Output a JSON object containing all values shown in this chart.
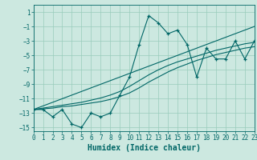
{
  "title": "",
  "xlabel": "Humidex (Indice chaleur)",
  "ylabel": "",
  "bg_color": "#cce8e0",
  "grid_color": "#99ccbb",
  "line_color": "#006666",
  "x_data": [
    0,
    1,
    2,
    3,
    4,
    5,
    6,
    7,
    8,
    9,
    10,
    11,
    12,
    13,
    14,
    15,
    16,
    17,
    18,
    19,
    20,
    21,
    22,
    23
  ],
  "y_main": [
    -12.5,
    -12.5,
    -13.5,
    -12.5,
    -14.5,
    -15.0,
    -13.0,
    -13.5,
    -13.0,
    -10.5,
    -8.0,
    -3.5,
    0.5,
    -0.5,
    -2.0,
    -1.5,
    -3.5,
    -8.0,
    -4.0,
    -5.5,
    -5.5,
    -3.0,
    -5.5,
    -3.0
  ],
  "y_line1": [
    -12.5,
    -12.0,
    -11.5,
    -11.0,
    -10.5,
    -10.0,
    -9.5,
    -9.0,
    -8.5,
    -8.0,
    -7.5,
    -7.0,
    -6.5,
    -6.0,
    -5.5,
    -5.0,
    -4.5,
    -4.0,
    -3.5,
    -3.0,
    -2.5,
    -2.0,
    -1.5,
    -1.0
  ],
  "y_line2": [
    -12.5,
    -12.3,
    -12.1,
    -11.9,
    -11.7,
    -11.5,
    -11.2,
    -10.9,
    -10.5,
    -10.0,
    -9.3,
    -8.5,
    -7.7,
    -7.0,
    -6.4,
    -5.9,
    -5.5,
    -5.1,
    -4.7,
    -4.3,
    -4.0,
    -3.7,
    -3.4,
    -3.2
  ],
  "y_line3": [
    -12.5,
    -12.4,
    -12.3,
    -12.1,
    -12.0,
    -11.8,
    -11.6,
    -11.4,
    -11.1,
    -10.7,
    -10.2,
    -9.5,
    -8.7,
    -8.0,
    -7.3,
    -6.7,
    -6.2,
    -5.7,
    -5.3,
    -4.9,
    -4.6,
    -4.3,
    -4.0,
    -3.8
  ],
  "xlim": [
    0,
    23
  ],
  "ylim": [
    -15.5,
    2.0
  ],
  "yticks": [
    1,
    -1,
    -3,
    -5,
    -7,
    -9,
    -11,
    -13,
    -15
  ],
  "xticks": [
    0,
    1,
    2,
    3,
    4,
    5,
    6,
    7,
    8,
    9,
    10,
    11,
    12,
    13,
    14,
    15,
    16,
    17,
    18,
    19,
    20,
    21,
    22,
    23
  ],
  "xlabel_fontsize": 7,
  "tick_fontsize": 5.5
}
